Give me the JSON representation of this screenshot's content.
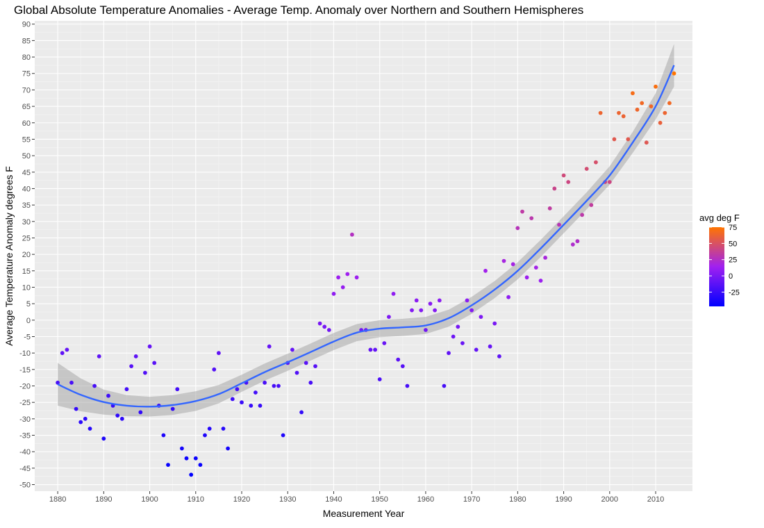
{
  "chart_data": {
    "type": "scatter",
    "title": "Global Absolute Temperature Anomalies - Average Temp. Anomaly over Northern and Southern Hemispheres",
    "xlabel": "Measurement Year",
    "ylabel": "Average Temperature Anomaly degrees F",
    "xlim": [
      1875,
      2018
    ],
    "ylim": [
      -52,
      91
    ],
    "x_ticks": [
      1880,
      1890,
      1900,
      1910,
      1920,
      1930,
      1940,
      1950,
      1960,
      1970,
      1980,
      1990,
      2000,
      2010
    ],
    "y_ticks": [
      -50,
      -45,
      -40,
      -35,
      -30,
      -25,
      -20,
      -15,
      -10,
      -5,
      0,
      5,
      10,
      15,
      20,
      25,
      30,
      35,
      40,
      45,
      50,
      55,
      60,
      65,
      70,
      75,
      80,
      85,
      90
    ],
    "grid": true,
    "legend": {
      "title": "avg deg F",
      "placement": "right",
      "labels": [
        75,
        50,
        25,
        0,
        -25
      ],
      "scale_range": [
        -47,
        75
      ],
      "colors": [
        "#0000ff",
        "#ff7500"
      ]
    },
    "colors": {
      "points_low": "#0000ff",
      "points_mid": "#a020f0",
      "points_high": "#ff7500",
      "smooth_line": "#3366ff",
      "ribbon": "#999999",
      "panel": "#ebebeb"
    },
    "x": [
      1880,
      1881,
      1882,
      1883,
      1884,
      1885,
      1886,
      1887,
      1888,
      1889,
      1890,
      1891,
      1892,
      1893,
      1894,
      1895,
      1896,
      1897,
      1898,
      1899,
      1900,
      1901,
      1902,
      1903,
      1904,
      1905,
      1906,
      1907,
      1908,
      1909,
      1910,
      1911,
      1912,
      1913,
      1914,
      1915,
      1916,
      1917,
      1918,
      1919,
      1920,
      1921,
      1922,
      1923,
      1924,
      1925,
      1926,
      1927,
      1928,
      1929,
      1930,
      1931,
      1932,
      1933,
      1934,
      1935,
      1936,
      1937,
      1938,
      1939,
      1940,
      1941,
      1942,
      1943,
      1944,
      1945,
      1946,
      1947,
      1948,
      1949,
      1950,
      1951,
      1952,
      1953,
      1954,
      1955,
      1956,
      1957,
      1958,
      1959,
      1960,
      1961,
      1962,
      1963,
      1964,
      1965,
      1966,
      1967,
      1968,
      1969,
      1970,
      1971,
      1972,
      1973,
      1974,
      1975,
      1976,
      1977,
      1978,
      1979,
      1980,
      1981,
      1982,
      1983,
      1984,
      1985,
      1986,
      1987,
      1988,
      1989,
      1990,
      1991,
      1992,
      1993,
      1994,
      1995,
      1996,
      1997,
      1998,
      1999,
      2000,
      2001,
      2002,
      2003,
      2004,
      2005,
      2006,
      2007,
      2008,
      2009,
      2010,
      2011,
      2012,
      2013,
      2014
    ],
    "y": [
      -19,
      -10,
      -9,
      -19,
      -27,
      -31,
      -30,
      -33,
      -20,
      -11,
      -36,
      -23,
      -26,
      -29,
      -30,
      -21,
      -14,
      -11,
      -28,
      -16,
      -8,
      -13,
      -26,
      -35,
      -44,
      -27,
      -21,
      -39,
      -42,
      -47,
      -42,
      -44,
      -35,
      -33,
      -15,
      -10,
      -33,
      -39,
      -24,
      -21,
      -25,
      -19,
      -26,
      -22,
      -26,
      -19,
      -8,
      -20,
      -20,
      -35,
      -13,
      -9,
      -16,
      -28,
      -13,
      -19,
      -14,
      -1,
      -2,
      -3,
      8,
      13,
      10,
      14,
      26,
      13,
      -3,
      -3,
      -9,
      -9,
      -18,
      -7,
      1,
      8,
      -12,
      -14,
      -20,
      3,
      6,
      3,
      -3,
      5,
      3,
      6,
      -20,
      -10,
      -5,
      -2,
      -7,
      6,
      3,
      -9,
      1,
      15,
      -8,
      -1,
      -11,
      18,
      7,
      17,
      28,
      33,
      13,
      31,
      16,
      12,
      19,
      34,
      40,
      29,
      44,
      42,
      23,
      24,
      32,
      46,
      35,
      48,
      63,
      42,
      42,
      55,
      63,
      62,
      55,
      69,
      64,
      66,
      54,
      65,
      71,
      60,
      63,
      66,
      75
    ],
    "smooth": {
      "x": [
        1880,
        1885,
        1890,
        1895,
        1900,
        1905,
        1910,
        1915,
        1920,
        1925,
        1930,
        1935,
        1940,
        1945,
        1950,
        1955,
        1960,
        1965,
        1970,
        1975,
        1980,
        1985,
        1990,
        1995,
        2000,
        2005,
        2010,
        2014
      ],
      "y": [
        -19.5,
        -22.7,
        -24.9,
        -26.0,
        -26.3,
        -25.8,
        -24.6,
        -22.5,
        -19.2,
        -15.8,
        -12.8,
        -9.7,
        -6.5,
        -3.8,
        -2.6,
        -2.2,
        -1.6,
        0.6,
        4.5,
        9.3,
        15.0,
        21.8,
        29.0,
        36.3,
        44.0,
        54.0,
        65.0,
        77.5
      ],
      "ci": [
        6.5,
        5.0,
        3.8,
        3.2,
        3.0,
        3.0,
        3.0,
        2.8,
        2.6,
        2.6,
        2.6,
        2.6,
        2.6,
        2.6,
        2.6,
        2.6,
        2.6,
        2.6,
        2.6,
        2.6,
        2.6,
        2.6,
        2.6,
        2.6,
        2.8,
        3.2,
        4.0,
        6.5
      ]
    }
  }
}
